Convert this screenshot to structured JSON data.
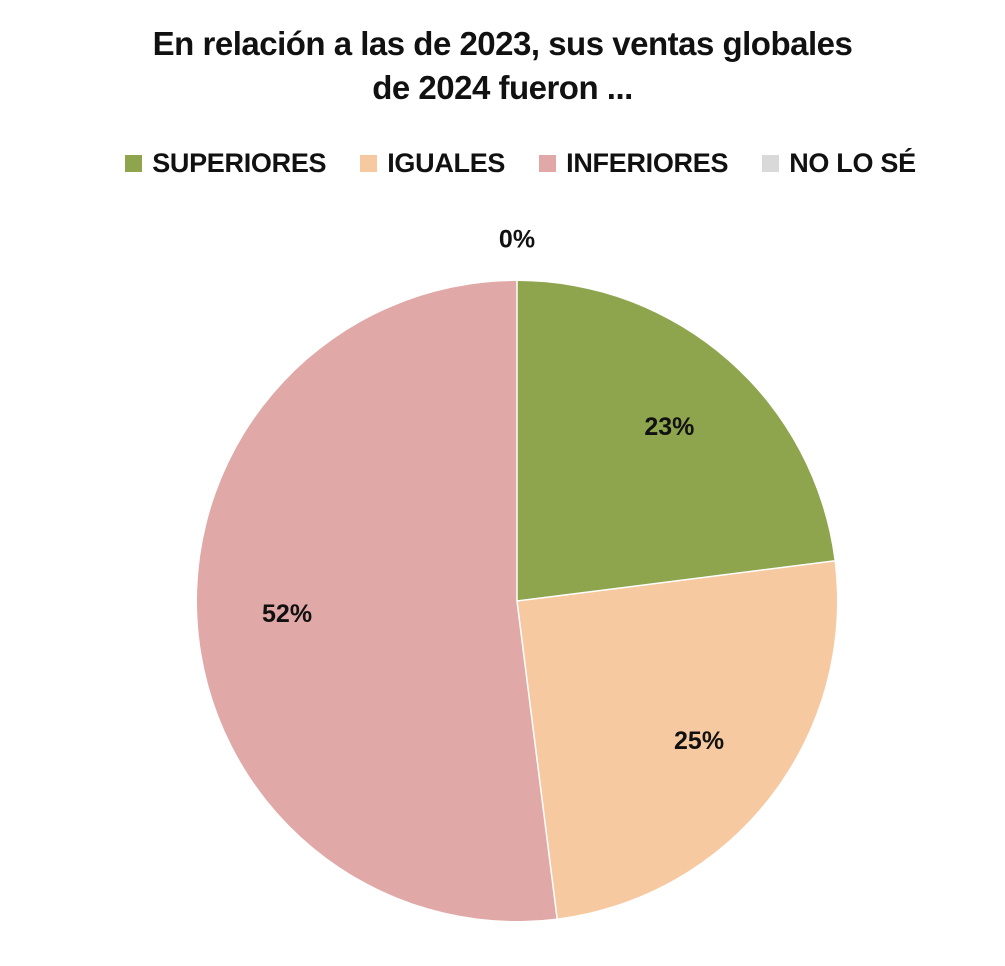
{
  "chart_data": {
    "type": "pie",
    "title": "En relación a las de 2023, sus ventas globales de 2024 fueron ...",
    "title_lines": [
      "En relación a las de 2023, sus ventas globales",
      "de 2024 fueron ..."
    ],
    "legend_placement": "top",
    "categories": [
      "SUPERIORES",
      "IGUALES",
      "INFERIORES",
      "NO LO SÉ"
    ],
    "values": [
      23,
      25,
      52,
      0
    ],
    "data_labels": [
      "23%",
      "25%",
      "52%",
      "0%"
    ],
    "colors": [
      "#8ea54e",
      "#f7c9a1",
      "#e0a8a6",
      "#d9d9d9"
    ],
    "start_angle_deg": 0,
    "direction": "clockwise"
  }
}
